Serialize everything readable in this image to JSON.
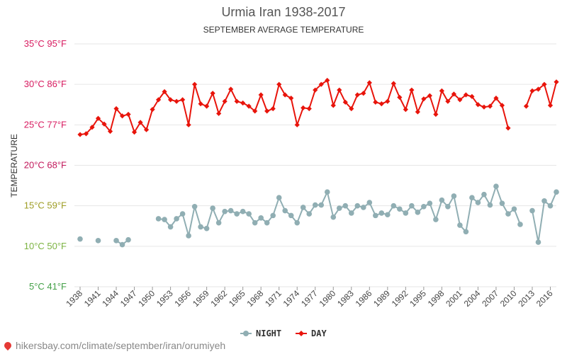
{
  "chart_data": {
    "type": "line",
    "title": "Urmia Iran 1938-2017",
    "subtitle": "SEPTEMBER AVERAGE TEMPERATURE",
    "ylabel": "TEMPERATURE",
    "ylim": [
      5,
      35
    ],
    "xlim": [
      1938,
      2017
    ],
    "grid": true,
    "legend_position": "bottom",
    "y_ticks": [
      {
        "value": 5,
        "label": "5°C 41°F",
        "color": "#43a047"
      },
      {
        "value": 10,
        "label": "10°C 50°F",
        "color": "#7cb342"
      },
      {
        "value": 15,
        "label": "15°C 59°F",
        "color": "#9e9d24"
      },
      {
        "value": 20,
        "label": "20°C 68°F",
        "color": "#c2185b"
      },
      {
        "value": 25,
        "label": "25°C 77°F",
        "color": "#d81b60"
      },
      {
        "value": 30,
        "label": "30°C 86°F",
        "color": "#d81b60"
      },
      {
        "value": 35,
        "label": "35°C 95°F",
        "color": "#d81b60"
      }
    ],
    "x_ticks": [
      1938,
      1941,
      1944,
      1947,
      1950,
      1953,
      1956,
      1959,
      1962,
      1965,
      1968,
      1971,
      1974,
      1977,
      1980,
      1983,
      1986,
      1989,
      1992,
      1995,
      1998,
      2001,
      2004,
      2007,
      2010,
      2013,
      2016
    ],
    "series": [
      {
        "name": "NIGHT",
        "color": "#90aeb3",
        "marker": "circle",
        "points": [
          [
            1938,
            10.9
          ],
          [
            1941,
            10.7
          ],
          [
            1944,
            10.7
          ],
          [
            1945,
            10.2
          ],
          [
            1946,
            10.8
          ],
          [
            1951,
            13.4
          ],
          [
            1952,
            13.3
          ],
          [
            1953,
            12.4
          ],
          [
            1954,
            13.4
          ],
          [
            1955,
            14.0
          ],
          [
            1956,
            11.3
          ],
          [
            1957,
            14.9
          ],
          [
            1958,
            12.4
          ],
          [
            1959,
            12.2
          ],
          [
            1960,
            14.7
          ],
          [
            1961,
            12.9
          ],
          [
            1962,
            14.3
          ],
          [
            1963,
            14.4
          ],
          [
            1964,
            14.0
          ],
          [
            1965,
            14.3
          ],
          [
            1966,
            14.0
          ],
          [
            1967,
            12.9
          ],
          [
            1968,
            13.5
          ],
          [
            1969,
            12.9
          ],
          [
            1970,
            13.8
          ],
          [
            1971,
            16.0
          ],
          [
            1972,
            14.4
          ],
          [
            1973,
            13.8
          ],
          [
            1974,
            12.9
          ],
          [
            1975,
            14.8
          ],
          [
            1976,
            14.0
          ],
          [
            1977,
            15.1
          ],
          [
            1978,
            15.1
          ],
          [
            1979,
            16.7
          ],
          [
            1980,
            13.6
          ],
          [
            1981,
            14.7
          ],
          [
            1982,
            15.0
          ],
          [
            1983,
            14.1
          ],
          [
            1984,
            15.0
          ],
          [
            1985,
            14.8
          ],
          [
            1986,
            15.4
          ],
          [
            1987,
            13.8
          ],
          [
            1988,
            14.1
          ],
          [
            1989,
            13.9
          ],
          [
            1990,
            15.0
          ],
          [
            1991,
            14.6
          ],
          [
            1992,
            14.1
          ],
          [
            1993,
            15.0
          ],
          [
            1994,
            14.2
          ],
          [
            1995,
            14.9
          ],
          [
            1996,
            15.3
          ],
          [
            1997,
            13.3
          ],
          [
            1998,
            15.7
          ],
          [
            1999,
            14.9
          ],
          [
            2000,
            16.2
          ],
          [
            2001,
            12.6
          ],
          [
            2002,
            11.8
          ],
          [
            2003,
            16.0
          ],
          [
            2004,
            15.4
          ],
          [
            2005,
            16.4
          ],
          [
            2006,
            15.1
          ],
          [
            2007,
            17.4
          ],
          [
            2008,
            15.3
          ],
          [
            2009,
            14.0
          ],
          [
            2010,
            14.6
          ],
          [
            2011,
            12.7
          ],
          [
            2013,
            14.4
          ],
          [
            2014,
            10.5
          ],
          [
            2015,
            15.6
          ],
          [
            2016,
            15.0
          ],
          [
            2017,
            16.7
          ]
        ]
      },
      {
        "name": "DAY",
        "color": "#e8140b",
        "marker": "diamond",
        "points": [
          [
            1938,
            23.8
          ],
          [
            1939,
            23.9
          ],
          [
            1940,
            24.7
          ],
          [
            1941,
            25.8
          ],
          [
            1942,
            25.1
          ],
          [
            1943,
            24.2
          ],
          [
            1944,
            27.0
          ],
          [
            1945,
            26.1
          ],
          [
            1946,
            26.3
          ],
          [
            1947,
            24.1
          ],
          [
            1948,
            25.3
          ],
          [
            1949,
            24.4
          ],
          [
            1950,
            26.9
          ],
          [
            1951,
            28.1
          ],
          [
            1952,
            29.1
          ],
          [
            1953,
            28.1
          ],
          [
            1954,
            27.9
          ],
          [
            1955,
            28.1
          ],
          [
            1956,
            25.0
          ],
          [
            1957,
            30.0
          ],
          [
            1958,
            27.6
          ],
          [
            1959,
            27.3
          ],
          [
            1960,
            28.9
          ],
          [
            1961,
            26.4
          ],
          [
            1962,
            27.9
          ],
          [
            1963,
            29.4
          ],
          [
            1964,
            27.9
          ],
          [
            1965,
            27.7
          ],
          [
            1966,
            27.3
          ],
          [
            1967,
            26.7
          ],
          [
            1968,
            28.7
          ],
          [
            1969,
            26.7
          ],
          [
            1970,
            27.0
          ],
          [
            1971,
            30.0
          ],
          [
            1972,
            28.7
          ],
          [
            1973,
            28.3
          ],
          [
            1974,
            25.0
          ],
          [
            1975,
            27.1
          ],
          [
            1976,
            27.0
          ],
          [
            1977,
            29.3
          ],
          [
            1978,
            30.0
          ],
          [
            1979,
            30.5
          ],
          [
            1980,
            27.4
          ],
          [
            1981,
            29.3
          ],
          [
            1982,
            27.8
          ],
          [
            1983,
            27.0
          ],
          [
            1984,
            28.7
          ],
          [
            1985,
            28.9
          ],
          [
            1986,
            30.2
          ],
          [
            1987,
            27.8
          ],
          [
            1988,
            27.6
          ],
          [
            1989,
            27.9
          ],
          [
            1990,
            30.1
          ],
          [
            1991,
            28.4
          ],
          [
            1992,
            26.9
          ],
          [
            1993,
            29.3
          ],
          [
            1994,
            26.6
          ],
          [
            1995,
            28.2
          ],
          [
            1996,
            28.6
          ],
          [
            1997,
            26.3
          ],
          [
            1998,
            29.2
          ],
          [
            1999,
            27.9
          ],
          [
            2000,
            28.8
          ],
          [
            2001,
            28.1
          ],
          [
            2002,
            28.7
          ],
          [
            2003,
            28.5
          ],
          [
            2004,
            27.5
          ],
          [
            2005,
            27.2
          ],
          [
            2006,
            27.3
          ],
          [
            2007,
            28.3
          ],
          [
            2008,
            27.4
          ],
          [
            2009,
            24.6
          ],
          [
            2012,
            27.3
          ],
          [
            2013,
            29.2
          ],
          [
            2014,
            29.4
          ],
          [
            2015,
            30.0
          ],
          [
            2016,
            27.4
          ],
          [
            2017,
            30.3
          ]
        ]
      }
    ]
  },
  "footer": {
    "text": "hikersbay.com/climate/september/iran/orumiyeh"
  }
}
